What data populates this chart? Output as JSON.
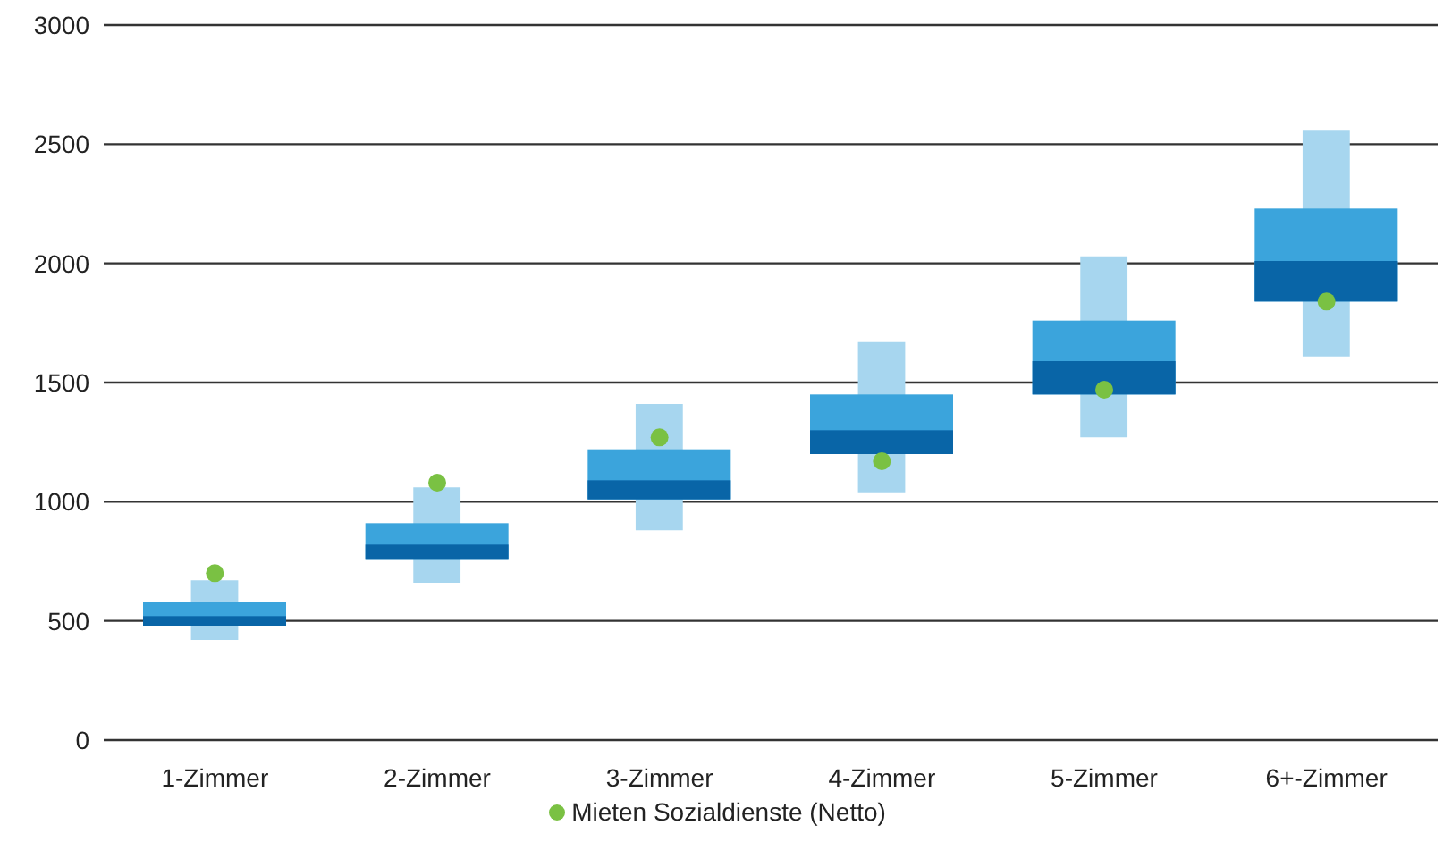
{
  "chart_data": {
    "type": "box",
    "categories": [
      "1-Zimmer",
      "2-Zimmer",
      "3-Zimmer",
      "4-Zimmer",
      "5-Zimmer",
      "6+-Zimmer"
    ],
    "ylim": [
      0,
      3000
    ],
    "yticks": [
      0,
      500,
      1000,
      1500,
      2000,
      2500,
      3000
    ],
    "grid": "y",
    "legend": "bottom",
    "series": [
      {
        "type": "box",
        "color": "#3ba4dc",
        "boxes": [
          {
            "low": 420,
            "q1": 480,
            "median": 520,
            "q3": 580,
            "high": 670
          },
          {
            "low": 660,
            "q1": 760,
            "median": 820,
            "q3": 910,
            "high": 1060
          },
          {
            "low": 880,
            "q1": 1010,
            "median": 1090,
            "q3": 1220,
            "high": 1410
          },
          {
            "low": 1040,
            "q1": 1200,
            "median": 1300,
            "q3": 1450,
            "high": 1670
          },
          {
            "low": 1270,
            "q1": 1450,
            "median": 1590,
            "q3": 1760,
            "high": 2030
          },
          {
            "low": 1610,
            "q1": 1840,
            "median": 2010,
            "q3": 2230,
            "high": 2560
          }
        ]
      },
      {
        "type": "scatter",
        "name": "Mieten Sozialdienste (Netto)",
        "color": "#7ac143",
        "marker": "circle",
        "x": [
          "1-Zimmer",
          "2-Zimmer",
          "3-Zimmer",
          "4-Zimmer",
          "5-Zimmer",
          "6+-Zimmer"
        ],
        "values": [
          700,
          1080,
          1270,
          1170,
          1470,
          1840
        ]
      }
    ]
  }
}
